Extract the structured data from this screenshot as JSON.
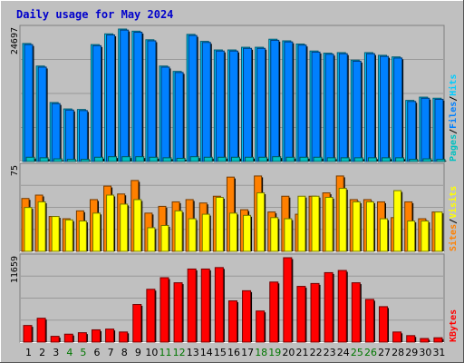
{
  "colors": {
    "background": "#c0c0c0",
    "title": "#0000cc",
    "hits": "#00ccff",
    "files": "#0080ff",
    "pages": "#00c0c0",
    "visits": "#ffff00",
    "sites": "#ff8000",
    "kbytes": "#ff0000",
    "weekend_label": "#007700",
    "gridline": "#999999"
  },
  "chart_data": {
    "title": "Daily usage for May 2024",
    "type": "bar",
    "days": [
      "1",
      "2",
      "3",
      "4",
      "5",
      "6",
      "7",
      "8",
      "9",
      "10",
      "11",
      "12",
      "13",
      "14",
      "15",
      "16",
      "17",
      "18",
      "19",
      "20",
      "21",
      "22",
      "23",
      "24",
      "25",
      "26",
      "27",
      "28",
      "29",
      "30",
      "31"
    ],
    "weekend_days": [
      "4",
      "5",
      "11",
      "12",
      "18",
      "19",
      "25",
      "26"
    ],
    "panels": [
      {
        "id": "hits",
        "ymax_label": "24697",
        "ymax": 24697,
        "legend": [
          "Pages",
          "/",
          "Files",
          "/",
          "Hits"
        ],
        "series": [
          {
            "name": "Hits",
            "values": [
              22000,
              17800,
              11000,
              9800,
              9700,
              21800,
              23800,
              24697,
              24300,
              22700,
              17800,
              16800,
              23700,
              22400,
              20800,
              20800,
              21300,
              21300,
              22800,
              22500,
              21900,
              20600,
              20200,
              20300,
              18900,
              20300,
              19800,
              19500,
              11400,
              12000,
              11800
            ]
          },
          {
            "name": "Files",
            "values": [
              21800,
              17600,
              10800,
              9600,
              9500,
              21600,
              23600,
              24500,
              24100,
              22500,
              17600,
              16600,
              23500,
              22200,
              20600,
              20600,
              21100,
              21100,
              22600,
              22300,
              21700,
              20400,
              20000,
              20100,
              18700,
              20100,
              19600,
              19300,
              11200,
              11800,
              11600
            ]
          },
          {
            "name": "Pages",
            "values": [
              800,
              700,
              500,
              400,
              400,
              800,
              900,
              900,
              900,
              800,
              700,
              600,
              900,
              800,
              800,
              800,
              800,
              800,
              900,
              800,
              800,
              800,
              700,
              700,
              700,
              700,
              700,
              700,
              400,
              500,
              400
            ]
          }
        ]
      },
      {
        "id": "visits",
        "ymax_label": "75",
        "ymax": 75,
        "legend": [
          "Sites",
          "/",
          "Visits"
        ],
        "series": [
          {
            "name": "Sites",
            "values": [
              47,
              50,
              31,
              29,
              36,
              46,
              58,
              51,
              63,
              34,
              40,
              44,
              46,
              43,
              49,
              66,
              37,
              67,
              35,
              49,
              33,
              49,
              52,
              67,
              46,
              46,
              44,
              30,
              44,
              29,
              35
            ]
          },
          {
            "name": "Visits",
            "values": [
              39,
              44,
              31,
              28,
              27,
              34,
              50,
              42,
              46,
              21,
              23,
              36,
              29,
              33,
              48,
              34,
              32,
              52,
              30,
              29,
              49,
              49,
              48,
              56,
              44,
              44,
              29,
              54,
              27,
              27,
              35
            ]
          }
        ]
      },
      {
        "id": "kbytes",
        "ymax_label": "11659",
        "ymax": 11659,
        "legend": [
          "KBytes"
        ],
        "series": [
          {
            "name": "KBytes",
            "values": [
              2300,
              3300,
              800,
              1100,
              1300,
              1700,
              1800,
              1400,
              5200,
              7300,
              8900,
              8200,
              10100,
              10100,
              10300,
              5700,
              7100,
              4300,
              8300,
              11659,
              7700,
              8100,
              9600,
              9900,
              8200,
              5900,
              4900,
              1400,
              900,
              500,
              600
            ]
          }
        ]
      }
    ]
  }
}
